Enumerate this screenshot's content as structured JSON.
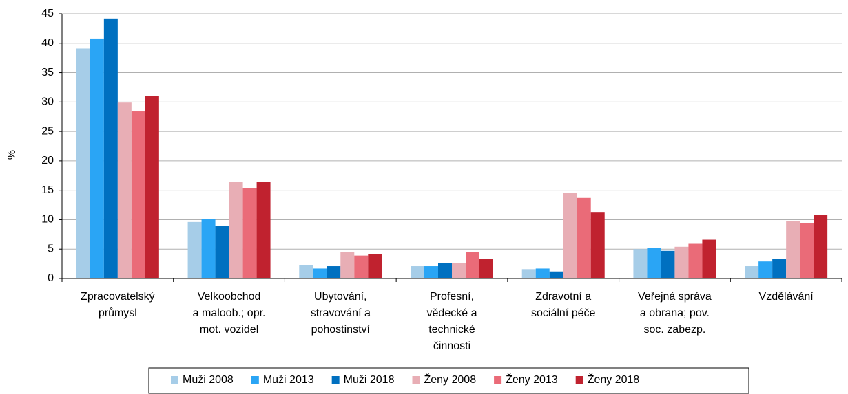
{
  "chart_data": {
    "type": "bar",
    "y_label": "%",
    "categories": [
      [
        "Zpracovatelský",
        "průmysl"
      ],
      [
        "Velkoobchod",
        "a maloob.; opr.",
        "mot. vozidel"
      ],
      [
        "Ubytování,",
        "stravování a",
        "pohostinství"
      ],
      [
        "Profesní,",
        "vědecké a",
        "technické",
        "činnosti"
      ],
      [
        "Zdravotní a",
        "sociální péče"
      ],
      [
        "Veřejná správa",
        "a obrana; pov.",
        "soc. zabezp."
      ],
      [
        "Vzdělávání"
      ]
    ],
    "series": [
      {
        "name": "Muži 2008",
        "color": "#a6cde8",
        "values": [
          39.1,
          9.6,
          2.3,
          2.1,
          1.6,
          5.0,
          2.1
        ]
      },
      {
        "name": "Muži 2013",
        "color": "#2aa5f5",
        "values": [
          40.8,
          10.1,
          1.7,
          2.1,
          1.7,
          5.2,
          2.9
        ]
      },
      {
        "name": "Muži 2018",
        "color": "#0070c0",
        "values": [
          44.2,
          8.9,
          2.1,
          2.6,
          1.2,
          4.7,
          3.3
        ]
      },
      {
        "name": "Ženy 2008",
        "color": "#e8aeb5",
        "values": [
          29.9,
          16.4,
          4.5,
          2.6,
          14.5,
          5.4,
          9.8
        ]
      },
      {
        "name": "Ženy 2013",
        "color": "#ea6b78",
        "values": [
          28.4,
          15.4,
          3.9,
          4.5,
          13.7,
          5.9,
          9.4
        ]
      },
      {
        "name": "Ženy 2018",
        "color": "#c0222f",
        "values": [
          31.0,
          16.4,
          4.2,
          3.3,
          11.2,
          6.6,
          10.8
        ]
      }
    ],
    "ylim": [
      0,
      45
    ],
    "yticks": [
      0,
      5,
      10,
      15,
      20,
      25,
      30,
      35,
      40,
      45
    ],
    "grid": true,
    "legend": "bottom"
  }
}
